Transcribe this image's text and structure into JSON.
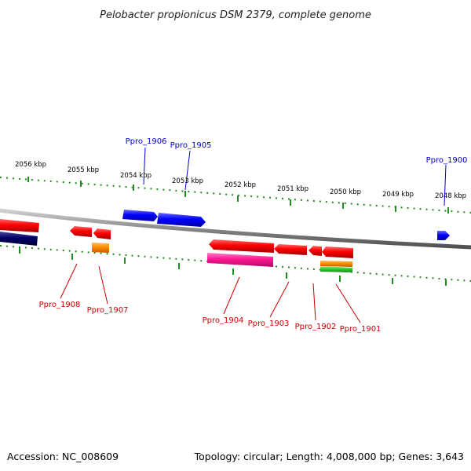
{
  "title": "Pelobacter propionicus DSM 2379, complete genome",
  "footer": {
    "accession": "Accession: NC_008609",
    "summary": "Topology: circular; Length: 4,008,000 bp; Genes: 3,643"
  },
  "colors": {
    "backbone": "#888888",
    "ticks": "#228b22",
    "forward_label": "#0000cc",
    "reverse_label": "#cc0000",
    "gene_red": "#ff0000",
    "gene_blue": "#0000ff",
    "gene_navy": "#000066",
    "gene_orange": "#ff8c00",
    "gene_magenta": "#ff1493",
    "gene_green": "#33cc33"
  },
  "ruler_labels": [
    "2056 kbp",
    "2055 kbp",
    "2054 kbp",
    "2053 kbp",
    "2052 kbp",
    "2051 kbp",
    "2050 kbp",
    "2049 kbp",
    "2048 kbp"
  ],
  "forward_gene_labels": [
    "Ppro_1906",
    "Ppro_1905",
    "Ppro_1900"
  ],
  "reverse_gene_labels": [
    "Ppro_1908",
    "Ppro_1907",
    "Ppro_1904",
    "Ppro_1903",
    "Ppro_1902",
    "Ppro_1901"
  ],
  "genes": [
    {
      "name": "Ppro_1906",
      "strand": "+",
      "color": "blue"
    },
    {
      "name": "Ppro_1905",
      "strand": "+",
      "color": "blue"
    },
    {
      "name": "Ppro_1900",
      "strand": "+",
      "color": "blue"
    },
    {
      "name": "Ppro_1908",
      "strand": "-",
      "color": "red"
    },
    {
      "name": "Ppro_1907",
      "strand": "-",
      "color": "orange"
    },
    {
      "name": "Ppro_1904",
      "strand": "-",
      "color": "magenta"
    },
    {
      "name": "Ppro_1903",
      "strand": "-",
      "color": "red"
    },
    {
      "name": "Ppro_1902",
      "strand": "-",
      "color": "red"
    },
    {
      "name": "Ppro_1901",
      "strand": "-",
      "color": "green"
    }
  ]
}
